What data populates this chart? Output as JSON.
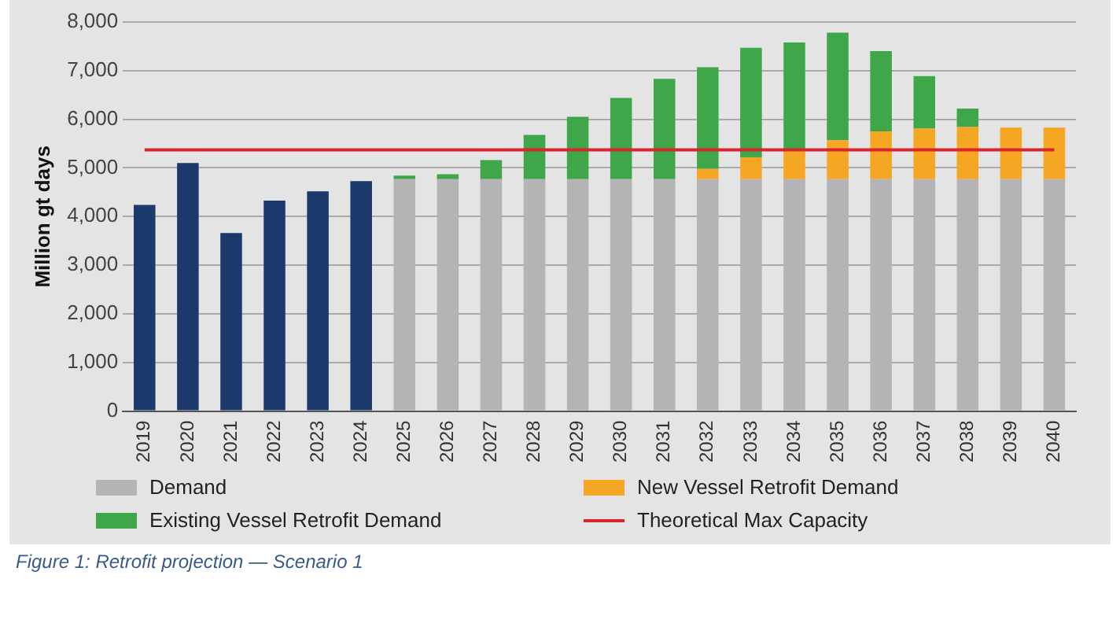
{
  "chart_data": {
    "type": "bar",
    "stacked": true,
    "ylabel": "Million gt days",
    "categories": [
      "2019",
      "2020",
      "2021",
      "2022",
      "2023",
      "2024",
      "2025",
      "2026",
      "2027",
      "2028",
      "2029",
      "2030",
      "2031",
      "2032",
      "2033",
      "2034",
      "2035",
      "2036",
      "2037",
      "2038",
      "2039",
      "2040"
    ],
    "series": [
      {
        "color": "#1b3a6b",
        "values": [
          4240,
          5100,
          3660,
          4330,
          4520,
          4730,
          null,
          null,
          null,
          null,
          null,
          null,
          null,
          null,
          null,
          null,
          null,
          null,
          null,
          null,
          null,
          null
        ]
      },
      {
        "name": "Demand",
        "color": "#b4b4b4",
        "values": [
          null,
          null,
          null,
          null,
          null,
          null,
          4770,
          4770,
          4770,
          4770,
          4770,
          4770,
          4770,
          4770,
          4770,
          4770,
          4770,
          4770,
          4770,
          4770,
          4770,
          4770
        ]
      },
      {
        "name": "New Vessel Retrofit Demand",
        "color": "#f5a623",
        "values": [
          null,
          null,
          null,
          null,
          null,
          null,
          0,
          0,
          0,
          0,
          0,
          0,
          0,
          210,
          450,
          600,
          800,
          980,
          1040,
          1070,
          1060,
          1060
        ]
      },
      {
        "name": "Existing Vessel Retrofit Demand",
        "color": "#3fa64a",
        "values": [
          null,
          null,
          null,
          null,
          null,
          null,
          70,
          100,
          390,
          910,
          1280,
          1670,
          2060,
          2090,
          2250,
          2210,
          2210,
          1650,
          1080,
          380,
          0,
          0
        ]
      },
      {
        "name": "Theoretical Max Capacity",
        "type": "line",
        "color": "#d7262e",
        "values": [
          5370,
          5370,
          5370,
          5370,
          5370,
          5370,
          5370,
          5370,
          5370,
          5370,
          5370,
          5370,
          5370,
          5370,
          5370,
          5370,
          5370,
          5370,
          5370,
          5370,
          5370,
          5370
        ]
      }
    ],
    "ylim": [
      0,
      8000
    ],
    "yticks": [
      {
        "value": 0,
        "label": "0"
      },
      {
        "value": 1000,
        "label": "1,000"
      },
      {
        "value": 2000,
        "label": "2,000"
      },
      {
        "value": 3000,
        "label": "3,000"
      },
      {
        "value": 4000,
        "label": "4,000"
      },
      {
        "value": 5000,
        "label": "5,000"
      },
      {
        "value": 6000,
        "label": "6,000"
      },
      {
        "value": 7000,
        "label": "7,000"
      },
      {
        "value": 8000,
        "label": "8,000"
      }
    ],
    "grid": "y",
    "legend": "bottom",
    "marker": "none",
    "annotations": [
      "Figure 1: Retrofit projection — Scenario 1"
    ]
  }
}
